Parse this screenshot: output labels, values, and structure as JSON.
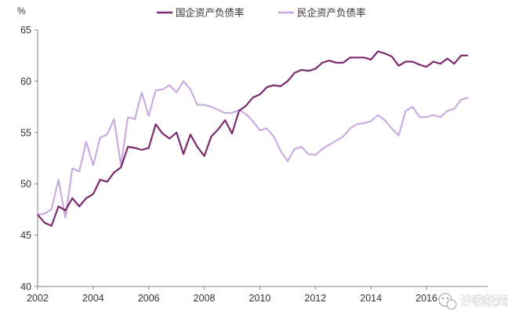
{
  "watermark": {
    "text": "汐泰投资",
    "icon": "wechat-icon"
  },
  "chart_data": {
    "type": "line",
    "title": "",
    "ylabel": "%",
    "ylim": [
      40,
      65
    ],
    "yticks": [
      40,
      45,
      50,
      55,
      60,
      65
    ],
    "xlim": [
      2002,
      2018.2
    ],
    "xticks": [
      2002,
      2004,
      2006,
      2008,
      2010,
      2012,
      2014,
      2016
    ],
    "grid": false,
    "legend": "top-center",
    "series": [
      {
        "name": "国企资产负债率",
        "color": "#7b2a6e",
        "points": [
          [
            2002.0,
            47.0
          ],
          [
            2002.25,
            46.2
          ],
          [
            2002.5,
            45.9
          ],
          [
            2002.75,
            47.8
          ],
          [
            2003.0,
            47.4
          ],
          [
            2003.25,
            48.6
          ],
          [
            2003.5,
            47.8
          ],
          [
            2003.75,
            48.6
          ],
          [
            2004.0,
            49.0
          ],
          [
            2004.25,
            50.4
          ],
          [
            2004.5,
            50.2
          ],
          [
            2004.75,
            51.1
          ],
          [
            2005.0,
            51.6
          ],
          [
            2005.25,
            53.6
          ],
          [
            2005.5,
            53.5
          ],
          [
            2005.75,
            53.3
          ],
          [
            2006.0,
            53.5
          ],
          [
            2006.25,
            55.8
          ],
          [
            2006.5,
            54.9
          ],
          [
            2006.75,
            54.4
          ],
          [
            2007.0,
            55.0
          ],
          [
            2007.25,
            52.9
          ],
          [
            2007.5,
            54.8
          ],
          [
            2007.75,
            53.6
          ],
          [
            2008.0,
            52.7
          ],
          [
            2008.25,
            54.6
          ],
          [
            2008.5,
            55.3
          ],
          [
            2008.75,
            56.2
          ],
          [
            2009.0,
            54.9
          ],
          [
            2009.25,
            57.1
          ],
          [
            2009.5,
            57.6
          ],
          [
            2009.75,
            58.4
          ],
          [
            2010.0,
            58.7
          ],
          [
            2010.25,
            59.4
          ],
          [
            2010.5,
            59.6
          ],
          [
            2010.75,
            59.5
          ],
          [
            2011.0,
            60.0
          ],
          [
            2011.25,
            60.8
          ],
          [
            2011.5,
            61.1
          ],
          [
            2011.75,
            61.0
          ],
          [
            2012.0,
            61.2
          ],
          [
            2012.25,
            61.8
          ],
          [
            2012.5,
            62.0
          ],
          [
            2012.75,
            61.8
          ],
          [
            2013.0,
            61.8
          ],
          [
            2013.25,
            62.3
          ],
          [
            2013.5,
            62.3
          ],
          [
            2013.75,
            62.3
          ],
          [
            2014.0,
            62.1
          ],
          [
            2014.25,
            62.9
          ],
          [
            2014.5,
            62.7
          ],
          [
            2014.75,
            62.4
          ],
          [
            2015.0,
            61.5
          ],
          [
            2015.25,
            61.9
          ],
          [
            2015.5,
            61.9
          ],
          [
            2015.75,
            61.6
          ],
          [
            2016.0,
            61.4
          ],
          [
            2016.25,
            61.9
          ],
          [
            2016.5,
            61.7
          ],
          [
            2016.75,
            62.2
          ],
          [
            2017.0,
            61.7
          ],
          [
            2017.25,
            62.5
          ],
          [
            2017.5,
            62.5
          ]
        ]
      },
      {
        "name": "民企资产负债率",
        "color": "#c7a6e0",
        "points": [
          [
            2002.0,
            47.0
          ],
          [
            2002.25,
            47.1
          ],
          [
            2002.5,
            47.5
          ],
          [
            2002.75,
            50.4
          ],
          [
            2003.0,
            46.7
          ],
          [
            2003.25,
            51.5
          ],
          [
            2003.5,
            51.2
          ],
          [
            2003.75,
            54.1
          ],
          [
            2004.0,
            51.8
          ],
          [
            2004.25,
            54.5
          ],
          [
            2004.5,
            54.8
          ],
          [
            2004.75,
            56.3
          ],
          [
            2005.0,
            51.8
          ],
          [
            2005.25,
            56.5
          ],
          [
            2005.5,
            56.3
          ],
          [
            2005.75,
            58.9
          ],
          [
            2006.0,
            56.6
          ],
          [
            2006.25,
            59.1
          ],
          [
            2006.5,
            59.2
          ],
          [
            2006.75,
            59.6
          ],
          [
            2007.0,
            58.9
          ],
          [
            2007.25,
            60.0
          ],
          [
            2007.5,
            59.2
          ],
          [
            2007.75,
            57.7
          ],
          [
            2008.0,
            57.7
          ],
          [
            2008.25,
            57.5
          ],
          [
            2008.5,
            57.2
          ],
          [
            2008.75,
            56.9
          ],
          [
            2009.0,
            56.9
          ],
          [
            2009.25,
            57.2
          ],
          [
            2009.5,
            56.8
          ],
          [
            2009.75,
            56.1
          ],
          [
            2010.0,
            55.2
          ],
          [
            2010.25,
            55.4
          ],
          [
            2010.5,
            54.6
          ],
          [
            2010.75,
            53.2
          ],
          [
            2011.0,
            52.2
          ],
          [
            2011.25,
            53.4
          ],
          [
            2011.5,
            53.6
          ],
          [
            2011.75,
            52.9
          ],
          [
            2012.0,
            52.8
          ],
          [
            2012.25,
            53.4
          ],
          [
            2012.5,
            53.8
          ],
          [
            2012.75,
            54.2
          ],
          [
            2013.0,
            54.6
          ],
          [
            2013.25,
            55.4
          ],
          [
            2013.5,
            55.8
          ],
          [
            2013.75,
            55.9
          ],
          [
            2014.0,
            56.1
          ],
          [
            2014.25,
            56.7
          ],
          [
            2014.5,
            56.2
          ],
          [
            2014.75,
            55.4
          ],
          [
            2015.0,
            54.7
          ],
          [
            2015.25,
            57.1
          ],
          [
            2015.5,
            57.5
          ],
          [
            2015.75,
            56.5
          ],
          [
            2016.0,
            56.5
          ],
          [
            2016.25,
            56.7
          ],
          [
            2016.5,
            56.5
          ],
          [
            2016.75,
            57.1
          ],
          [
            2017.0,
            57.3
          ],
          [
            2017.25,
            58.2
          ],
          [
            2017.5,
            58.4
          ]
        ]
      }
    ]
  }
}
